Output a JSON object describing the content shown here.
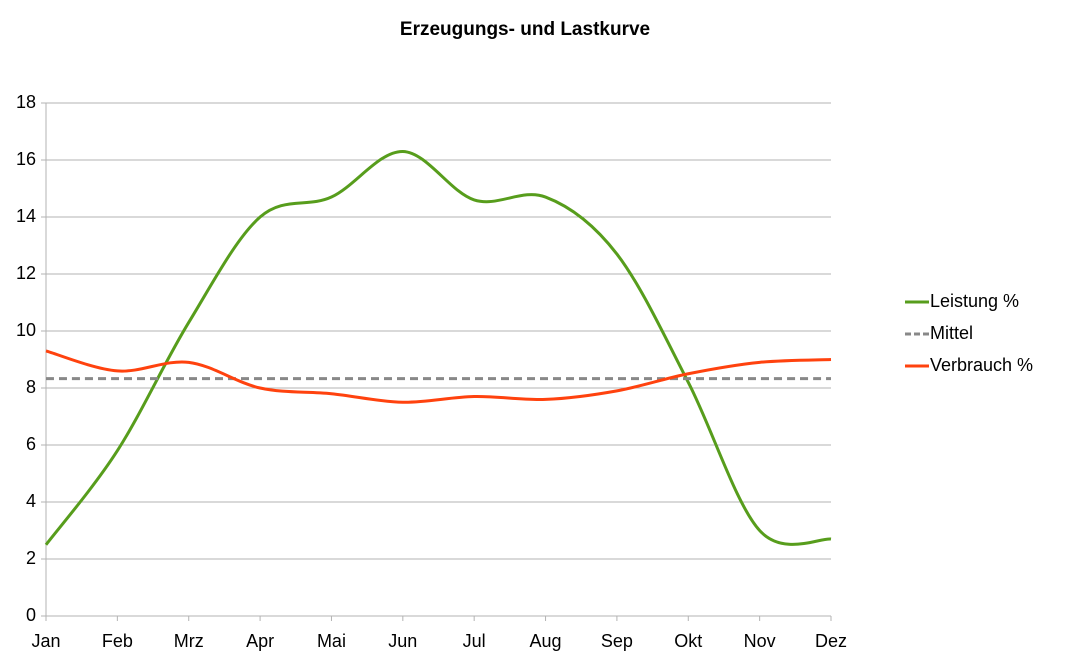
{
  "chart_data": {
    "type": "line",
    "title": "Erzeugungs- und Lastkurve",
    "categories": [
      "Jan",
      "Feb",
      "Mrz",
      "Apr",
      "Mai",
      "Jun",
      "Jul",
      "Aug",
      "Sep",
      "Okt",
      "Nov",
      "Dez"
    ],
    "series": [
      {
        "name": "Leistung %",
        "color": "#579d1c",
        "values": [
          2.5,
          5.8,
          10.3,
          14.0,
          14.7,
          16.3,
          14.6,
          14.7,
          12.7,
          8.2,
          3.0,
          2.7
        ]
      },
      {
        "name": "Mittel",
        "color": "#888888",
        "dashed": true,
        "values": [
          8.33,
          8.33,
          8.33,
          8.33,
          8.33,
          8.33,
          8.33,
          8.33,
          8.33,
          8.33,
          8.33,
          8.33
        ]
      },
      {
        "name": "Verbrauch %",
        "color": "#ff420e",
        "values": [
          9.3,
          8.6,
          8.9,
          8.0,
          7.8,
          7.5,
          7.7,
          7.6,
          7.9,
          8.5,
          8.9,
          9.0
        ]
      }
    ],
    "ylim": [
      0,
      18
    ],
    "yticks": [
      0,
      2,
      4,
      6,
      8,
      10,
      12,
      14,
      16,
      18
    ],
    "grid": true,
    "smooth": true,
    "legend": "right"
  }
}
